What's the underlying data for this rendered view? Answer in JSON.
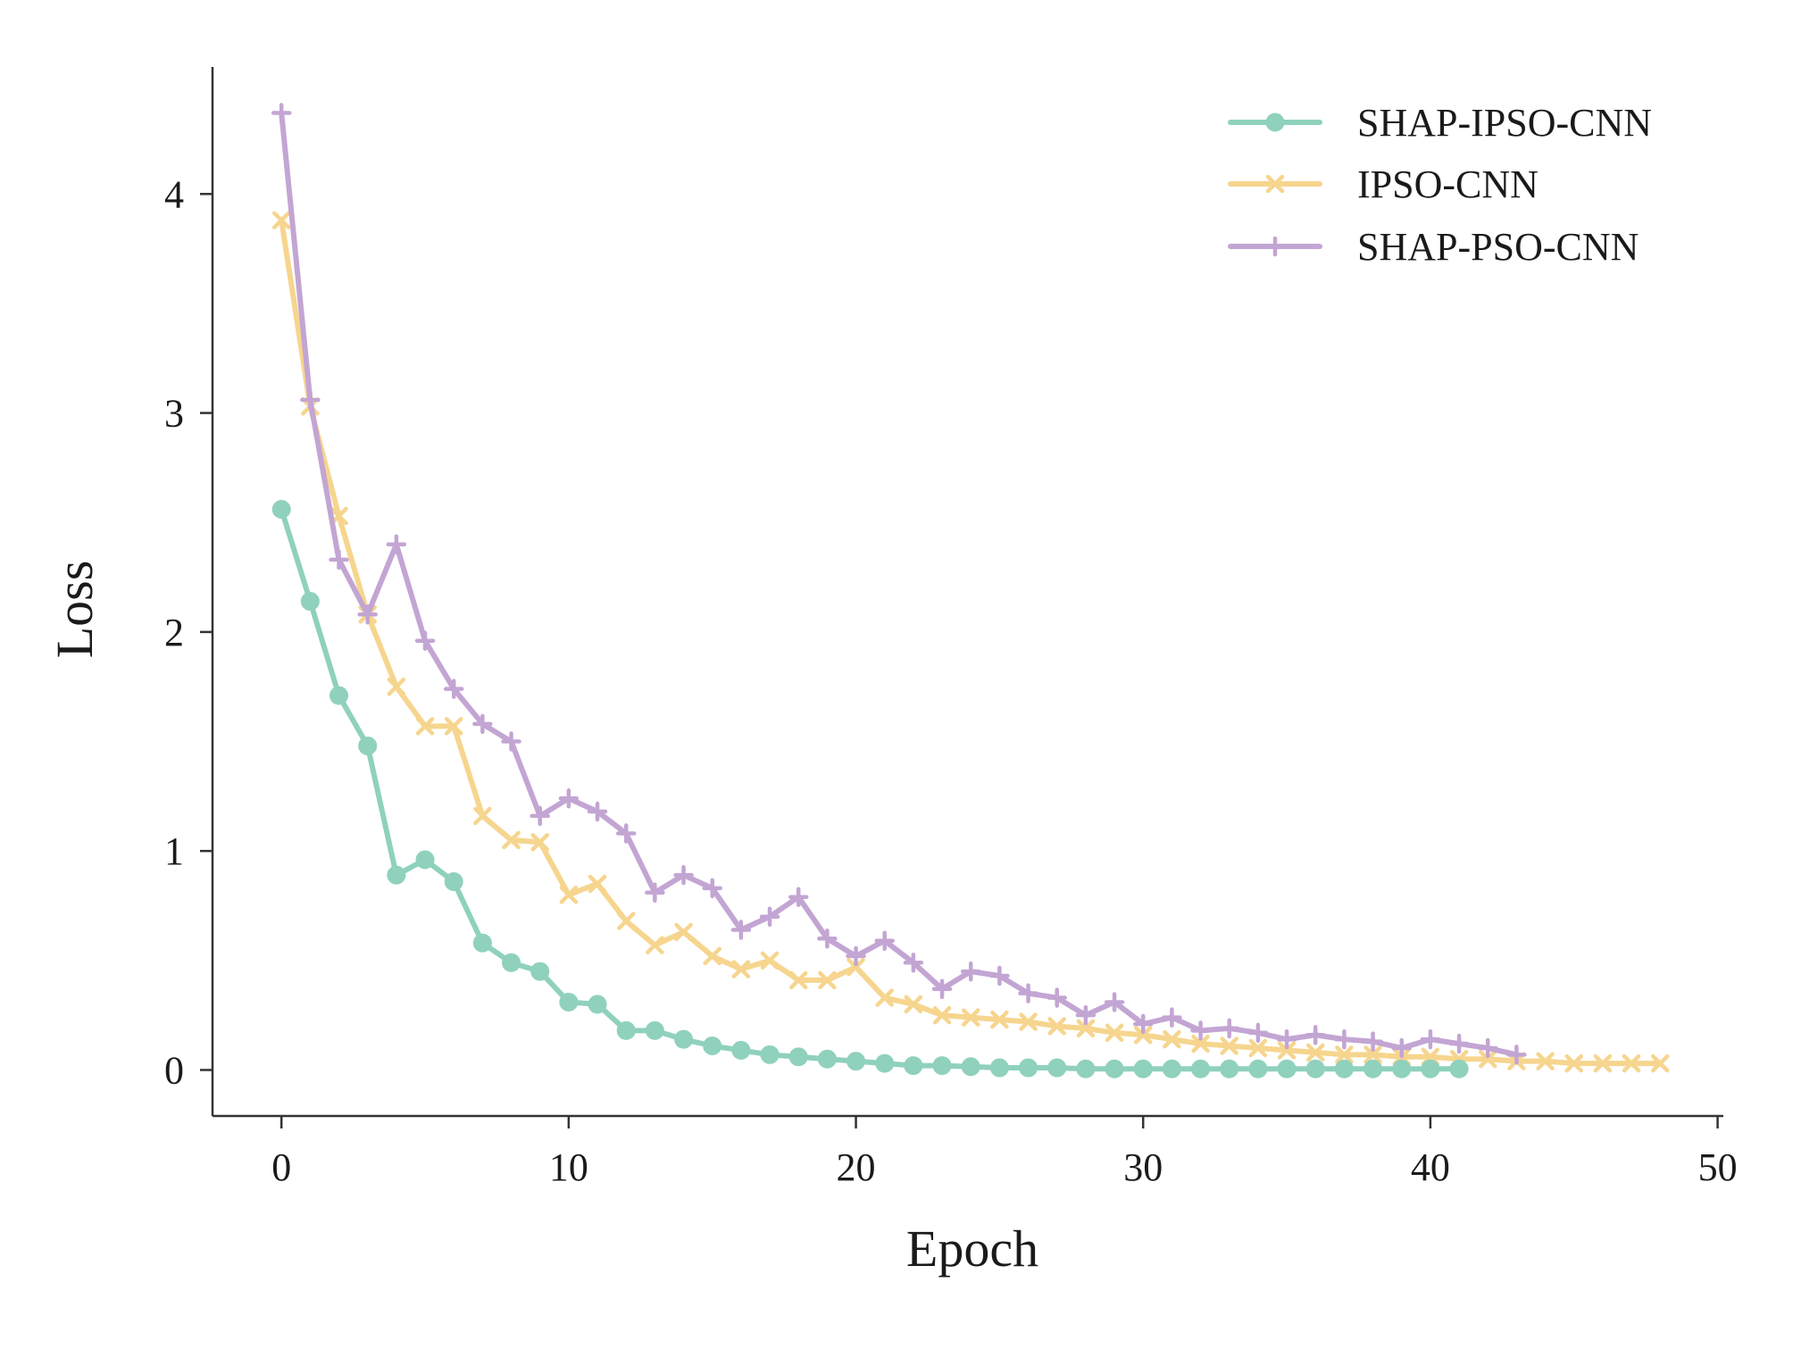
{
  "chart_data": {
    "type": "line",
    "title": "",
    "xlabel": "Epoch",
    "ylabel": "Loss",
    "xlim": [
      -2.4,
      50.2
    ],
    "ylim": [
      -0.21,
      4.58
    ],
    "xticks": [
      0,
      10,
      20,
      30,
      40,
      50
    ],
    "yticks": [
      0,
      1,
      2,
      3,
      4
    ],
    "grid": false,
    "legend_position": "top-right",
    "series": [
      {
        "name": "SHAP-IPSO-CNN",
        "color": "#8fd1bd",
        "marker": "circle",
        "x": [
          0,
          1,
          2,
          3,
          4,
          5,
          6,
          7,
          8,
          9,
          10,
          11,
          12,
          13,
          14,
          15,
          16,
          17,
          18,
          19,
          20,
          21,
          22,
          23,
          24,
          25,
          26,
          27,
          28,
          29,
          30,
          31,
          32,
          33,
          34,
          35,
          36,
          37,
          38,
          39,
          40,
          41
        ],
        "values": [
          2.56,
          2.14,
          1.71,
          1.48,
          0.89,
          0.96,
          0.86,
          0.58,
          0.49,
          0.45,
          0.31,
          0.3,
          0.18,
          0.18,
          0.14,
          0.11,
          0.09,
          0.07,
          0.06,
          0.05,
          0.04,
          0.03,
          0.02,
          0.02,
          0.015,
          0.01,
          0.01,
          0.01,
          0.005,
          0.005,
          0.005,
          0.005,
          0.005,
          0.005,
          0.005,
          0.005,
          0.005,
          0.005,
          0.005,
          0.005,
          0.005,
          0.005
        ]
      },
      {
        "name": "IPSO-CNN",
        "color": "#f6d58e",
        "marker": "x",
        "x": [
          0,
          1,
          2,
          3,
          4,
          5,
          6,
          7,
          8,
          9,
          10,
          11,
          12,
          13,
          14,
          15,
          16,
          17,
          18,
          19,
          20,
          21,
          22,
          23,
          24,
          25,
          26,
          27,
          28,
          29,
          30,
          31,
          32,
          33,
          34,
          35,
          36,
          37,
          38,
          39,
          40,
          41,
          42,
          43,
          44,
          45,
          46,
          47,
          48
        ],
        "values": [
          3.88,
          3.03,
          2.53,
          2.08,
          1.75,
          1.57,
          1.57,
          1.16,
          1.05,
          1.04,
          0.8,
          0.85,
          0.68,
          0.57,
          0.63,
          0.52,
          0.46,
          0.5,
          0.41,
          0.41,
          0.47,
          0.33,
          0.3,
          0.25,
          0.24,
          0.23,
          0.22,
          0.2,
          0.19,
          0.17,
          0.16,
          0.14,
          0.12,
          0.11,
          0.1,
          0.09,
          0.08,
          0.07,
          0.07,
          0.06,
          0.06,
          0.05,
          0.05,
          0.04,
          0.04,
          0.03,
          0.03,
          0.03,
          0.03
        ]
      },
      {
        "name": "SHAP-PSO-CNN",
        "color": "#c3a5d3",
        "marker": "plus",
        "x": [
          0,
          1,
          2,
          3,
          4,
          5,
          6,
          7,
          8,
          9,
          10,
          11,
          12,
          13,
          14,
          15,
          16,
          17,
          18,
          19,
          20,
          21,
          22,
          23,
          24,
          25,
          26,
          27,
          28,
          29,
          30,
          31,
          32,
          33,
          34,
          35,
          36,
          37,
          38,
          39,
          40,
          41,
          42,
          43
        ],
        "values": [
          4.37,
          3.06,
          2.33,
          2.08,
          2.4,
          1.96,
          1.74,
          1.58,
          1.5,
          1.16,
          1.24,
          1.18,
          1.08,
          0.81,
          0.89,
          0.83,
          0.64,
          0.7,
          0.79,
          0.6,
          0.52,
          0.59,
          0.49,
          0.37,
          0.45,
          0.43,
          0.35,
          0.33,
          0.25,
          0.31,
          0.21,
          0.24,
          0.18,
          0.19,
          0.17,
          0.14,
          0.16,
          0.14,
          0.13,
          0.1,
          0.14,
          0.12,
          0.1,
          0.07
        ]
      }
    ]
  }
}
